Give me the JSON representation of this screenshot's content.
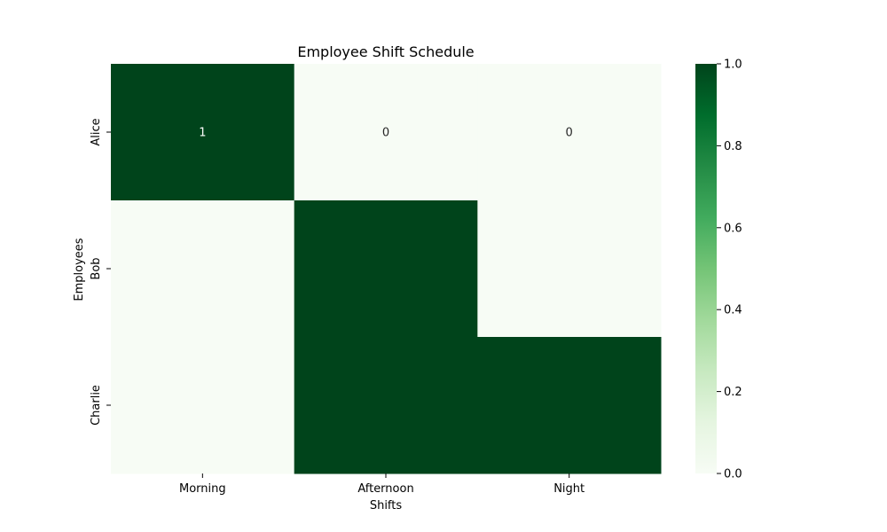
{
  "chart_data": {
    "type": "heatmap",
    "title": "Employee Shift Schedule",
    "xlabel": "Shifts",
    "ylabel": "Employees",
    "x_categories": [
      "Morning",
      "Afternoon",
      "Night"
    ],
    "y_categories": [
      "Alice",
      "Bob",
      "Charlie"
    ],
    "values": [
      [
        1,
        0,
        0
      ],
      [
        0,
        1,
        0
      ],
      [
        0,
        1,
        1
      ]
    ],
    "annotations": [
      [
        "1",
        "0",
        "0"
      ],
      [
        "",
        "",
        ""
      ],
      [
        "",
        "",
        ""
      ]
    ],
    "colormap": "Greens",
    "color_low": "#f7fcf5",
    "color_high": "#00441b",
    "colorbar": {
      "range": [
        0.0,
        1.0
      ],
      "ticks": [
        "0.0",
        "0.2",
        "0.4",
        "0.6",
        "0.8",
        "1.0"
      ]
    }
  }
}
